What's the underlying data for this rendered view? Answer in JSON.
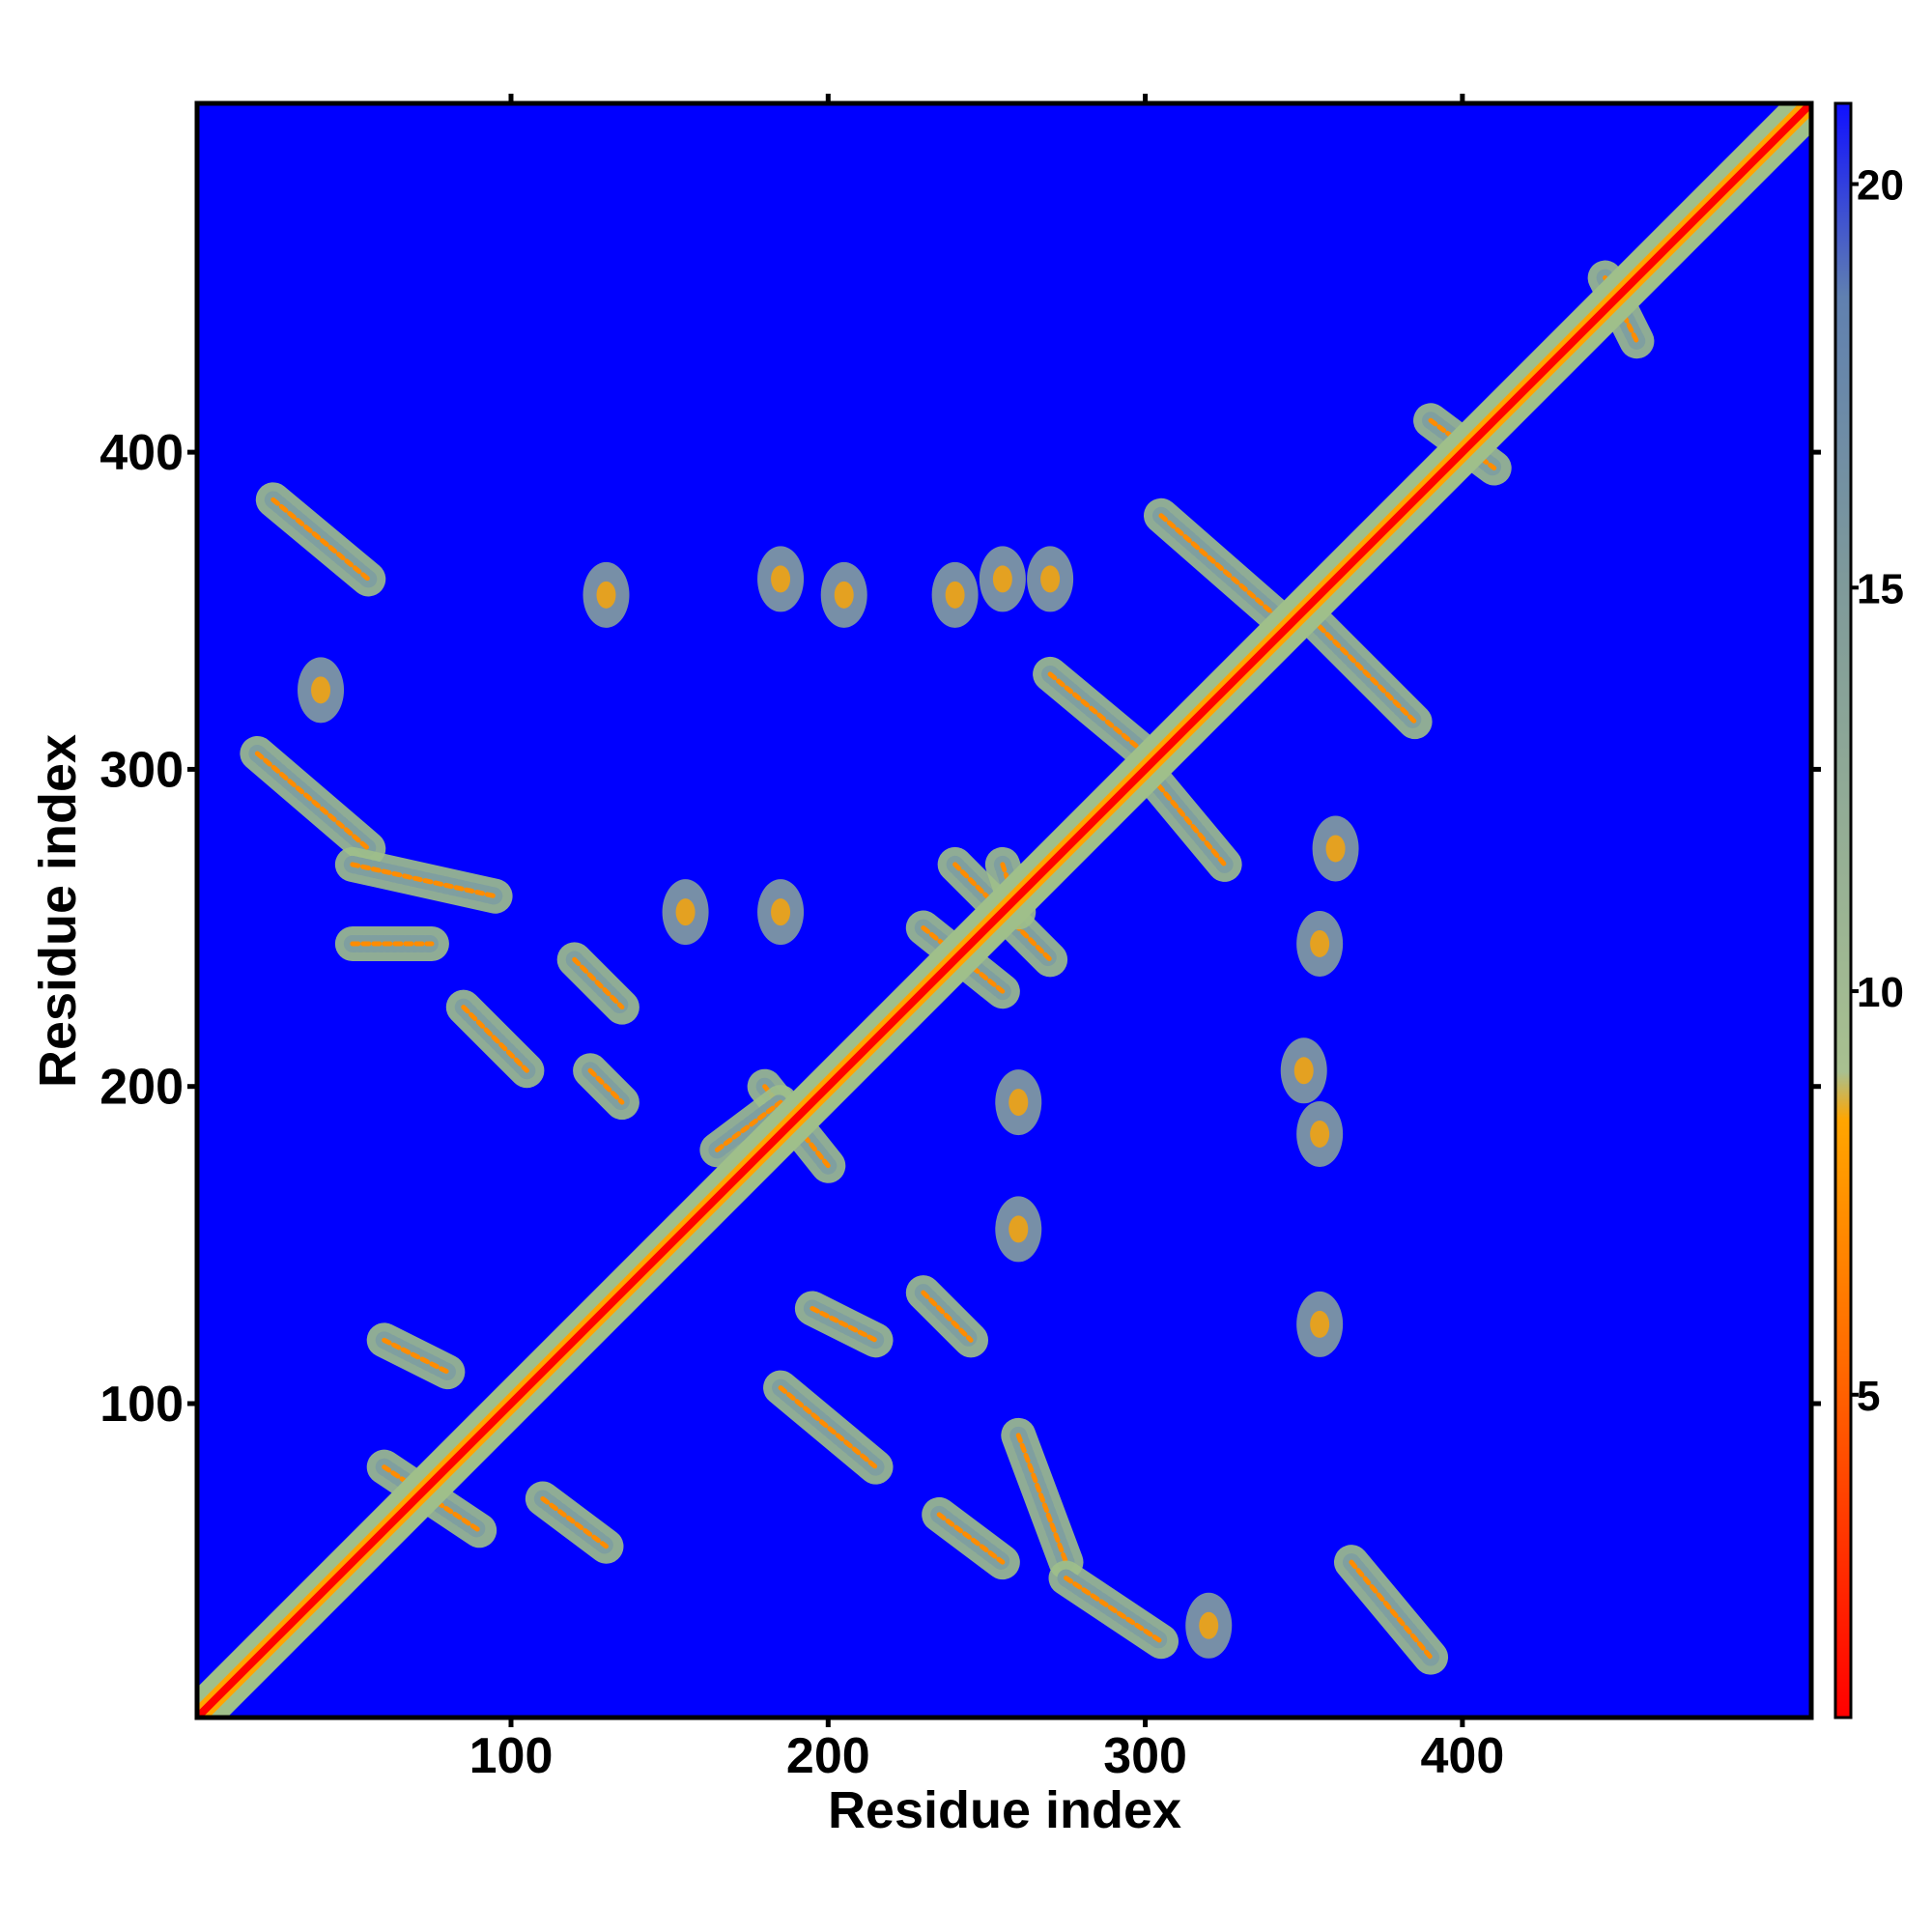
{
  "chart_data": {
    "type": "heatmap",
    "title": "",
    "xlabel": "Residue index",
    "ylabel": "Residue index",
    "xlim": [
      1,
      510
    ],
    "ylim": [
      1,
      510
    ],
    "x_ticks": [
      100,
      200,
      300,
      400
    ],
    "x_tick_labels": [
      "100",
      "200",
      "300",
      "400"
    ],
    "y_ticks": [
      100,
      200,
      300,
      400
    ],
    "y_tick_labels": [
      "100",
      "200",
      "300",
      "400"
    ],
    "colorbar": {
      "range": [
        1,
        21
      ],
      "ticks": [
        5,
        10,
        15,
        20
      ],
      "tick_labels": [
        "5",
        "10",
        "15",
        "20"
      ],
      "colors": [
        "#ff0000",
        "#ff6a00",
        "#ffa500",
        "#9fbf8a",
        "#7f9fa0",
        "#5f7fb0",
        "#0000ff"
      ]
    },
    "background_color": "#0000ff",
    "diagonal": {
      "from": 1,
      "to": 510
    },
    "contact_bands": [
      {
        "x": [
          25,
          55
        ],
        "y": [
          385,
          360
        ]
      },
      {
        "x": [
          20,
          55
        ],
        "y": [
          305,
          275
        ]
      },
      {
        "x": [
          50,
          95
        ],
        "y": [
          270,
          260
        ]
      },
      {
        "x": [
          50,
          75
        ],
        "y": [
          245,
          245
        ]
      },
      {
        "x": [
          85,
          105
        ],
        "y": [
          225,
          205
        ]
      },
      {
        "x": [
          120,
          135
        ],
        "y": [
          240,
          225
        ]
      },
      {
        "x": [
          125,
          135
        ],
        "y": [
          205,
          195
        ]
      },
      {
        "x": [
          180,
          200
        ],
        "y": [
          200,
          175
        ]
      },
      {
        "x": [
          165,
          185
        ],
        "y": [
          180,
          195
        ]
      },
      {
        "x": [
          240,
          270
        ],
        "y": [
          270,
          240
        ]
      },
      {
        "x": [
          230,
          255
        ],
        "y": [
          250,
          230
        ]
      },
      {
        "x": [
          255,
          260
        ],
        "y": [
          270,
          255
        ]
      },
      {
        "x": [
          230,
          245
        ],
        "y": [
          135,
          120
        ]
      },
      {
        "x": [
          195,
          215
        ],
        "y": [
          130,
          120
        ]
      },
      {
        "x": [
          305,
          345
        ],
        "y": [
          380,
          345
        ]
      },
      {
        "x": [
          355,
          385
        ],
        "y": [
          345,
          315
        ]
      },
      {
        "x": [
          270,
          300
        ],
        "y": [
          330,
          305
        ]
      },
      {
        "x": [
          300,
          325
        ],
        "y": [
          300,
          270
        ]
      },
      {
        "x": [
          260,
          275
        ],
        "y": [
          90,
          50
        ]
      },
      {
        "x": [
          275,
          305
        ],
        "y": [
          45,
          25
        ]
      },
      {
        "x": [
          365,
          390
        ],
        "y": [
          50,
          20
        ]
      },
      {
        "x": [
          60,
          90
        ],
        "y": [
          80,
          60
        ]
      },
      {
        "x": [
          60,
          80
        ],
        "y": [
          120,
          110
        ]
      },
      {
        "x": [
          110,
          130
        ],
        "y": [
          70,
          55
        ]
      },
      {
        "x": [
          185,
          215
        ],
        "y": [
          105,
          80
        ]
      },
      {
        "x": [
          235,
          255
        ],
        "y": [
          65,
          50
        ]
      },
      {
        "x": [
          445,
          455
        ],
        "y": [
          455,
          435
        ]
      },
      {
        "x": [
          390,
          410
        ],
        "y": [
          410,
          395
        ]
      }
    ],
    "contact_clusters": [
      {
        "x": 130,
        "y": 355
      },
      {
        "x": 185,
        "y": 360
      },
      {
        "x": 205,
        "y": 355
      },
      {
        "x": 240,
        "y": 355
      },
      {
        "x": 255,
        "y": 360
      },
      {
        "x": 270,
        "y": 360
      },
      {
        "x": 155,
        "y": 255
      },
      {
        "x": 185,
        "y": 255
      },
      {
        "x": 360,
        "y": 275
      },
      {
        "x": 355,
        "y": 245
      },
      {
        "x": 350,
        "y": 205
      },
      {
        "x": 355,
        "y": 185
      },
      {
        "x": 355,
        "y": 125
      },
      {
        "x": 260,
        "y": 155
      },
      {
        "x": 260,
        "y": 195
      },
      {
        "x": 320,
        "y": 30
      },
      {
        "x": 40,
        "y": 325
      }
    ]
  }
}
